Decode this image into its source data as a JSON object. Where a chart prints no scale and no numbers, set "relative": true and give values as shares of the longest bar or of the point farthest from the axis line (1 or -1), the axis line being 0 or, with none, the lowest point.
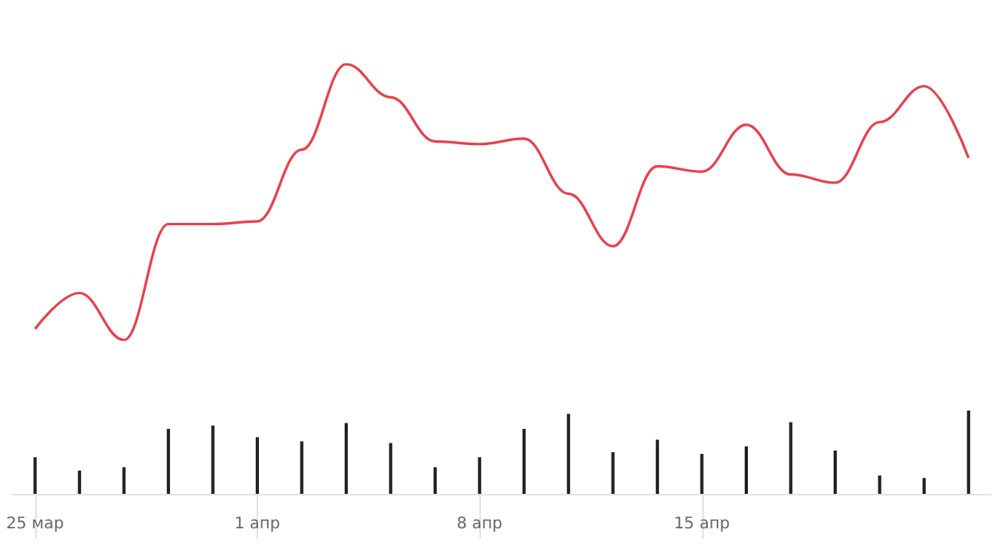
{
  "chart_data": [
    {
      "type": "line",
      "categories": [
        null,
        null,
        null,
        null,
        null,
        null,
        null,
        null,
        null,
        null,
        null,
        null,
        null,
        null,
        null,
        null,
        null,
        null,
        null,
        null,
        null,
        null
      ],
      "values": [
        0.04,
        0.17,
        0,
        0.42,
        0.42,
        0.43,
        0.69,
        1,
        0.88,
        0.72,
        0.71,
        0.73,
        0.53,
        0.34,
        0.63,
        0.61,
        0.78,
        0.6,
        0.57,
        0.79,
        0.92,
        0.66
      ],
      "color": "#e8404a",
      "relative": true,
      "marker": "none"
    },
    {
      "type": "bar",
      "categories": [
        "25 мар",
        null,
        null,
        null,
        null,
        "1 апр",
        null,
        null,
        null,
        null,
        "8 апр",
        null,
        null,
        null,
        null,
        "15 апр",
        null,
        null,
        null,
        null,
        null,
        null
      ],
      "values": [
        0.44,
        0.28,
        0.32,
        0.78,
        0.82,
        0.68,
        0.63,
        0.85,
        0.61,
        0.32,
        0.44,
        0.78,
        0.96,
        0.5,
        0.65,
        0.48,
        0.57,
        0.86,
        0.52,
        0.22,
        0.19,
        1
      ],
      "color": "#222222",
      "relative": true
    }
  ]
}
